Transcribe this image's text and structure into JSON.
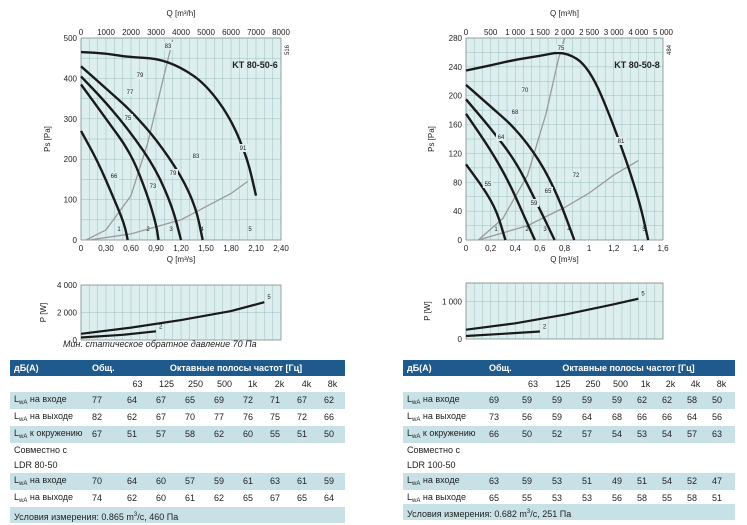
{
  "charts": [
    {
      "title": "KT 80-50-6",
      "side_code": "516",
      "top_axis_label": "Q [m³/h]",
      "top_ticks": [
        "0",
        "1000",
        "2000",
        "3000",
        "4000",
        "5000",
        "6000",
        "7000",
        "8000"
      ],
      "ylabel": "Ps [Pa]",
      "y_ticks": [
        "0",
        "100",
        "200",
        "300",
        "400",
        "500"
      ],
      "xlabel": "Q [m³/s]",
      "x_ticks": [
        "0",
        "0,30",
        "0,60",
        "0,90",
        "1,20",
        "1,50",
        "1,80",
        "2,10",
        "2,40"
      ],
      "power_ylabel": "P [W]",
      "power_ticks": [
        "0",
        "2 000",
        "4 000"
      ]
    },
    {
      "title": "KT 80-50-8",
      "side_code": "484",
      "top_axis_label": "Q [m³/h]",
      "top_ticks": [
        "0",
        "500",
        "1 000",
        "1 500",
        "2 000",
        "2 500",
        "3 000",
        "4 000",
        "5 000"
      ],
      "ylabel": "Ps [Pa]",
      "y_ticks": [
        "0",
        "40",
        "80",
        "120",
        "160",
        "200",
        "240",
        "280"
      ],
      "xlabel": "Q [m³/s]",
      "x_ticks": [
        "0",
        "0,2",
        "0,4",
        "0,6",
        "0,8",
        "1",
        "1,2",
        "1,4",
        "1,6"
      ],
      "power_ylabel": "P [W]",
      "power_ticks": [
        "0",
        "1 000"
      ]
    }
  ],
  "chart_data": [
    {
      "type": "line",
      "title": "KT 80-50-6",
      "xlabel": "Q [m³/s]",
      "ylabel": "Ps [Pa]",
      "xlim": [
        0,
        2.4
      ],
      "ylim": [
        0,
        500
      ],
      "grid": true,
      "fan_curves": [
        {
          "name": "5",
          "points": [
            [
              0,
              465
            ],
            [
              0.3,
              462
            ],
            [
              0.6,
              452
            ],
            [
              0.9,
              450
            ],
            [
              1.2,
              428
            ],
            [
              1.5,
              385
            ],
            [
              1.8,
              300
            ],
            [
              2.0,
              200
            ],
            [
              2.1,
              110
            ]
          ]
        },
        {
          "name": "4",
          "points": [
            [
              0,
              430
            ],
            [
              0.3,
              375
            ],
            [
              0.6,
              320
            ],
            [
              0.9,
              250
            ],
            [
              1.2,
              160
            ],
            [
              1.38,
              80
            ],
            [
              1.46,
              0
            ]
          ]
        },
        {
          "name": "3",
          "points": [
            [
              0,
              405
            ],
            [
              0.3,
              340
            ],
            [
              0.6,
              265
            ],
            [
              0.9,
              175
            ],
            [
              1.1,
              80
            ],
            [
              1.2,
              0
            ]
          ]
        },
        {
          "name": "2",
          "points": [
            [
              0,
              385
            ],
            [
              0.3,
              300
            ],
            [
              0.6,
              215
            ],
            [
              0.8,
              110
            ],
            [
              0.9,
              40
            ],
            [
              0.93,
              0
            ]
          ]
        },
        {
          "name": "1",
          "points": [
            [
              0,
              270
            ],
            [
              0.2,
              195
            ],
            [
              0.4,
              100
            ],
            [
              0.52,
              40
            ],
            [
              0.56,
              0
            ]
          ]
        }
      ],
      "efficiency_labels": [
        "83",
        "79",
        "77",
        "75",
        "66",
        "73",
        "79",
        "83",
        "91"
      ],
      "system_curves": [
        {
          "name": "upper",
          "points": [
            [
              0.06,
              0
            ],
            [
              0.3,
              25
            ],
            [
              0.6,
              110
            ],
            [
              0.8,
              240
            ],
            [
              1.0,
              410
            ],
            [
              1.1,
              495
            ]
          ]
        },
        {
          "name": "lower",
          "points": [
            [
              0.1,
              0
            ],
            [
              0.6,
              15
            ],
            [
              1.2,
              50
            ],
            [
              1.8,
              115
            ],
            [
              2.0,
              145
            ]
          ]
        }
      ],
      "power_curves": {
        "ylim": [
          0,
          4000
        ],
        "series": [
          {
            "name": "5",
            "points": [
              [
                0,
                450
              ],
              [
                0.6,
                900
              ],
              [
                1.2,
                1450
              ],
              [
                1.8,
                2100
              ],
              [
                2.2,
                2750
              ]
            ]
          },
          {
            "name": "2",
            "points": [
              [
                0,
                180
              ],
              [
                0.5,
                380
              ],
              [
                0.9,
                630
              ]
            ]
          }
        ]
      }
    },
    {
      "type": "line",
      "title": "KT 80-50-8",
      "xlabel": "Q [m³/s]",
      "ylabel": "Ps [Pa]",
      "xlim": [
        0,
        1.6
      ],
      "ylim": [
        0,
        280
      ],
      "grid": true,
      "fan_curves": [
        {
          "name": "5",
          "points": [
            [
              0,
              235
            ],
            [
              0.2,
              242
            ],
            [
              0.4,
              250
            ],
            [
              0.6,
              255
            ],
            [
              0.8,
              262
            ],
            [
              1.0,
              240
            ],
            [
              1.2,
              160
            ],
            [
              1.4,
              60
            ],
            [
              1.48,
              0
            ]
          ]
        },
        {
          "name": "4",
          "points": [
            [
              0,
              215
            ],
            [
              0.2,
              185
            ],
            [
              0.4,
              155
            ],
            [
              0.6,
              110
            ],
            [
              0.75,
              60
            ],
            [
              0.88,
              0
            ]
          ]
        },
        {
          "name": "3",
          "points": [
            [
              0,
              195
            ],
            [
              0.2,
              155
            ],
            [
              0.4,
              110
            ],
            [
              0.55,
              60
            ],
            [
              0.72,
              0
            ]
          ]
        },
        {
          "name": "2",
          "points": [
            [
              0,
              175
            ],
            [
              0.2,
              125
            ],
            [
              0.35,
              80
            ],
            [
              0.48,
              30
            ],
            [
              0.56,
              0
            ]
          ]
        },
        {
          "name": "1",
          "points": [
            [
              0,
              105
            ],
            [
              0.15,
              70
            ],
            [
              0.25,
              40
            ],
            [
              0.32,
              0
            ]
          ]
        }
      ],
      "efficiency_labels": [
        "75",
        "70",
        "68",
        "64",
        "55",
        "59",
        "65",
        "72",
        "81"
      ],
      "system_curves": [
        {
          "name": "upper",
          "points": [
            [
              0.1,
              0
            ],
            [
              0.3,
              30
            ],
            [
              0.5,
              90
            ],
            [
              0.65,
              175
            ],
            [
              0.75,
              250
            ],
            [
              0.8,
              280
            ]
          ]
        },
        {
          "name": "lower",
          "points": [
            [
              0.1,
              0
            ],
            [
              0.5,
              20
            ],
            [
              0.8,
              45
            ],
            [
              1.0,
              65
            ],
            [
              1.2,
              90
            ],
            [
              1.4,
              110
            ]
          ]
        }
      ],
      "power_curves": {
        "ylim": [
          0,
          1500
        ],
        "series": [
          {
            "name": "5",
            "points": [
              [
                0,
                250
              ],
              [
                0.4,
                420
              ],
              [
                0.8,
                650
              ],
              [
                1.2,
                930
              ],
              [
                1.4,
                1080
              ]
            ]
          },
          {
            "name": "2",
            "points": [
              [
                0,
                80
              ],
              [
                0.3,
                140
              ],
              [
                0.6,
                200
              ]
            ]
          }
        ]
      }
    }
  ],
  "caption_left": "Мин. статическое обратное давление 70 Па",
  "tables": [
    {
      "head": [
        "дБ(А)",
        "Общ.",
        "Октавные полосы частот [Гц]"
      ],
      "bands": [
        "63",
        "125",
        "250",
        "500",
        "1k",
        "2k",
        "4k",
        "8k"
      ],
      "rows": [
        {
          "label": "на входе",
          "vals": [
            "77",
            "64",
            "67",
            "65",
            "69",
            "72",
            "71",
            "67",
            "62"
          ]
        },
        {
          "label": "на выходе",
          "vals": [
            "82",
            "62",
            "67",
            "70",
            "77",
            "76",
            "75",
            "72",
            "66"
          ]
        },
        {
          "label": "к окружению",
          "vals": [
            "67",
            "51",
            "57",
            "58",
            "62",
            "60",
            "55",
            "51",
            "50"
          ]
        }
      ],
      "together_line1": "Совместно с",
      "together_line2": "LDR 80-50",
      "rows2": [
        {
          "label": "на входе",
          "vals": [
            "70",
            "64",
            "60",
            "57",
            "59",
            "61",
            "63",
            "61",
            "59"
          ]
        },
        {
          "label": "на выходе",
          "vals": [
            "74",
            "62",
            "60",
            "61",
            "62",
            "65",
            "67",
            "65",
            "64"
          ]
        }
      ],
      "cond_prefix": "Условия измерения: 0.865 m",
      "cond_sup": "3",
      "cond_suffix": "/c, 460 Па"
    },
    {
      "head": [
        "дБ(А)",
        "Общ.",
        "Октавные полосы частот [Гц]"
      ],
      "bands": [
        "63",
        "125",
        "250",
        "500",
        "1k",
        "2k",
        "4k",
        "8k"
      ],
      "rows": [
        {
          "label": "на входе",
          "vals": [
            "69",
            "59",
            "59",
            "59",
            "59",
            "62",
            "62",
            "58",
            "50"
          ]
        },
        {
          "label": "на выходе",
          "vals": [
            "73",
            "56",
            "59",
            "64",
            "68",
            "66",
            "66",
            "64",
            "56"
          ]
        },
        {
          "label": "к окружению",
          "vals": [
            "66",
            "50",
            "52",
            "57",
            "54",
            "53",
            "54",
            "57",
            "63"
          ]
        }
      ],
      "together_line1": "Совместно с",
      "together_line2": "LDR 100-50",
      "rows2": [
        {
          "label": "на входе",
          "vals": [
            "63",
            "59",
            "53",
            "51",
            "49",
            "51",
            "54",
            "52",
            "47"
          ]
        },
        {
          "label": "на выходе",
          "vals": [
            "65",
            "55",
            "53",
            "53",
            "56",
            "58",
            "55",
            "58",
            "51"
          ]
        }
      ],
      "cond_prefix": "Условия измерения: 0.682 m",
      "cond_sup": "3",
      "cond_suffix": "/c, 251 Па"
    }
  ],
  "level_prefix": "L",
  "level_sub": "wA",
  "colors": {
    "header": "#1f5a8c",
    "row_alt": "#c8e1e6",
    "plot_bg": "#dcefee",
    "curve": "#1a1a1a",
    "system": "#9a9a9a"
  }
}
